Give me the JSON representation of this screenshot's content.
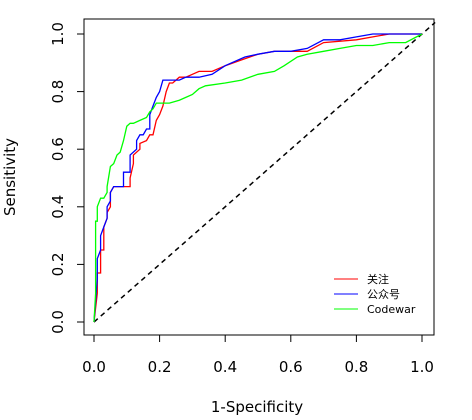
{
  "chart_data": {
    "type": "line",
    "title": "",
    "xlabel": "1-Specificity",
    "ylabel": "Sensitivity",
    "xlim": [
      0,
      1
    ],
    "ylim": [
      0,
      1
    ],
    "xticks": [
      "0.0",
      "0.2",
      "0.4",
      "0.6",
      "0.8",
      "1.0"
    ],
    "yticks": [
      "0.0",
      "0.2",
      "0.4",
      "0.6",
      "0.8",
      "1.0"
    ],
    "grid": false,
    "legend_position": "bottom-right",
    "reference_line": {
      "x": [
        0,
        1
      ],
      "y": [
        0,
        1
      ],
      "style": "dashed",
      "color": "#000000"
    },
    "series": [
      {
        "name": "关注",
        "color": "#ff0000",
        "x": [
          0,
          0.01,
          0.01,
          0.02,
          0.02,
          0.03,
          0.03,
          0.04,
          0.04,
          0.05,
          0.05,
          0.06,
          0.06,
          0.08,
          0.08,
          0.1,
          0.11,
          0.11,
          0.12,
          0.12,
          0.14,
          0.14,
          0.16,
          0.17,
          0.18,
          0.19,
          0.2,
          0.21,
          0.22,
          0.23,
          0.24,
          0.25,
          0.26,
          0.28,
          0.3,
          0.32,
          0.34,
          0.36,
          0.4,
          0.45,
          0.5,
          0.55,
          0.6,
          0.65,
          0.7,
          0.8,
          0.85,
          0.9,
          1.0
        ],
        "y": [
          0,
          0.1,
          0.17,
          0.17,
          0.25,
          0.25,
          0.33,
          0.36,
          0.38,
          0.4,
          0.45,
          0.47,
          0.47,
          0.47,
          0.47,
          0.47,
          0.47,
          0.5,
          0.55,
          0.58,
          0.6,
          0.62,
          0.63,
          0.65,
          0.65,
          0.7,
          0.72,
          0.75,
          0.8,
          0.83,
          0.83,
          0.84,
          0.85,
          0.85,
          0.86,
          0.87,
          0.87,
          0.87,
          0.89,
          0.91,
          0.93,
          0.94,
          0.94,
          0.94,
          0.97,
          0.98,
          0.99,
          1.0,
          1.0
        ]
      },
      {
        "name": "公众号",
        "color": "#0000ff",
        "x": [
          0,
          0.01,
          0.01,
          0.02,
          0.02,
          0.03,
          0.04,
          0.04,
          0.05,
          0.05,
          0.06,
          0.09,
          0.09,
          0.11,
          0.11,
          0.13,
          0.13,
          0.14,
          0.15,
          0.16,
          0.17,
          0.17,
          0.18,
          0.19,
          0.2,
          0.21,
          0.22,
          0.26,
          0.28,
          0.32,
          0.36,
          0.4,
          0.46,
          0.5,
          0.55,
          0.6,
          0.65,
          0.7,
          0.75,
          0.8,
          0.85,
          0.9,
          1.0
        ],
        "y": [
          0,
          0.15,
          0.22,
          0.25,
          0.3,
          0.33,
          0.36,
          0.4,
          0.42,
          0.45,
          0.47,
          0.47,
          0.52,
          0.52,
          0.58,
          0.6,
          0.63,
          0.65,
          0.65,
          0.67,
          0.67,
          0.72,
          0.75,
          0.78,
          0.8,
          0.84,
          0.84,
          0.84,
          0.85,
          0.85,
          0.86,
          0.89,
          0.92,
          0.93,
          0.94,
          0.94,
          0.95,
          0.98,
          0.98,
          0.99,
          1.0,
          1.0,
          1.0
        ]
      },
      {
        "name": "Codewar",
        "color": "#00ff00",
        "x": [
          0,
          0.005,
          0.005,
          0.01,
          0.01,
          0.02,
          0.03,
          0.04,
          0.04,
          0.05,
          0.06,
          0.07,
          0.08,
          0.09,
          0.1,
          0.11,
          0.12,
          0.14,
          0.16,
          0.17,
          0.18,
          0.19,
          0.21,
          0.23,
          0.26,
          0.28,
          0.3,
          0.32,
          0.34,
          0.4,
          0.45,
          0.5,
          0.55,
          0.58,
          0.62,
          0.65,
          0.7,
          0.75,
          0.8,
          0.85,
          0.9,
          0.95,
          1.0
        ],
        "y": [
          0,
          0.1,
          0.35,
          0.35,
          0.4,
          0.43,
          0.43,
          0.45,
          0.47,
          0.54,
          0.55,
          0.58,
          0.59,
          0.63,
          0.68,
          0.69,
          0.69,
          0.7,
          0.71,
          0.73,
          0.74,
          0.76,
          0.76,
          0.76,
          0.77,
          0.78,
          0.79,
          0.81,
          0.82,
          0.83,
          0.84,
          0.86,
          0.87,
          0.89,
          0.92,
          0.93,
          0.94,
          0.95,
          0.96,
          0.96,
          0.97,
          0.97,
          1.0
        ]
      }
    ]
  }
}
